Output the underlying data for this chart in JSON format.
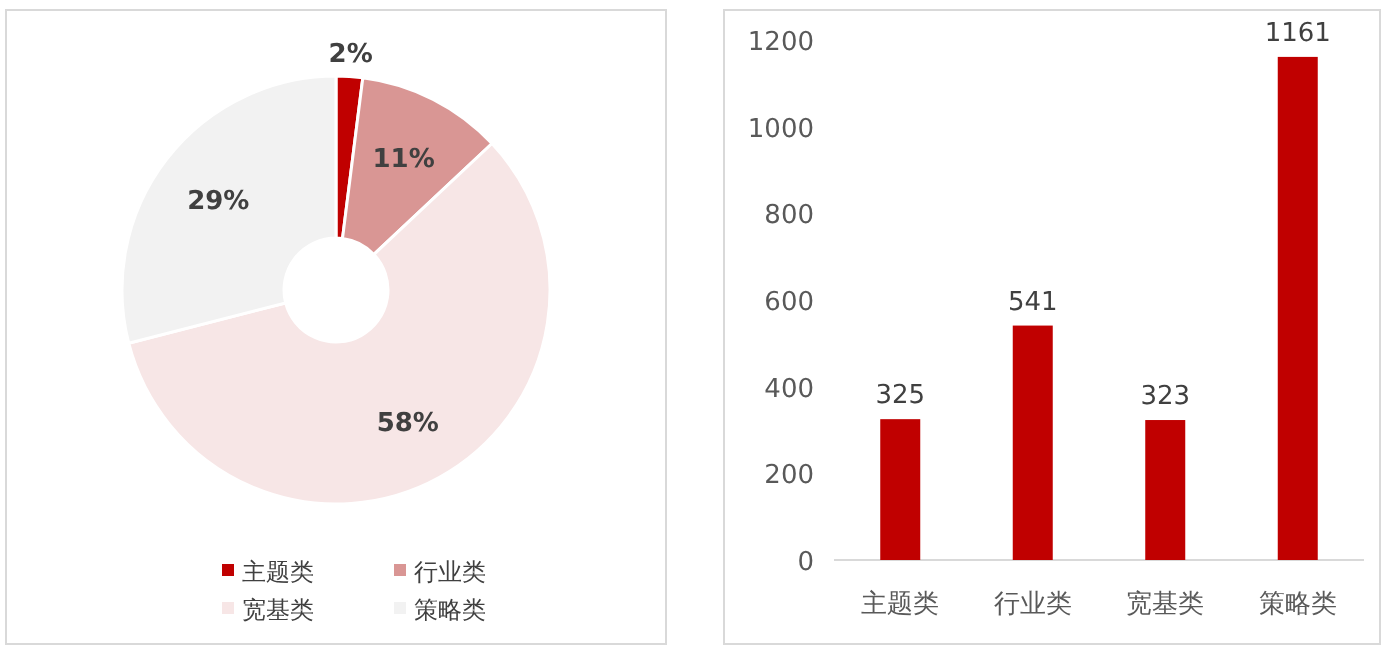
{
  "chart_data": [
    {
      "type": "donut",
      "categories": [
        "主题类",
        "行业类",
        "宽基类",
        "策略类"
      ],
      "values": [
        2,
        11,
        58,
        29
      ],
      "colors": [
        "#c00000",
        "#d99694",
        "#f7e6e6",
        "#f2f2f2"
      ],
      "value_labels": [
        "2%",
        "11%",
        "58%",
        "29%"
      ],
      "legend": "bottom"
    },
    {
      "type": "bar",
      "categories": [
        "主题类",
        "行业类",
        "宽基类",
        "策略类"
      ],
      "values": [
        325,
        541,
        323,
        1161
      ],
      "color": "#c00000",
      "ylim": [
        0,
        1200
      ],
      "yticks": [
        0,
        200,
        400,
        600,
        800,
        1000,
        1200
      ],
      "data_labels": true
    }
  ]
}
